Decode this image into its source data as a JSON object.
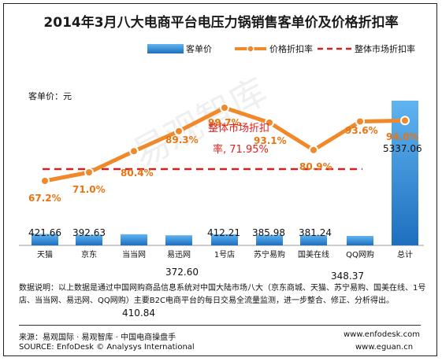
{
  "chart_data": {
    "type": "bar+line",
    "title": "2014年3月八大电商平台电压力锅销售客单价及价格折扣率",
    "ylabel": "客单价：元",
    "categories": [
      "天猫",
      "京东",
      "当当网",
      "易迅网",
      "1号店",
      "苏宁易购",
      "国美在线",
      "QQ网购",
      "总计"
    ],
    "series": [
      {
        "name": "客单价",
        "type": "bar",
        "values": [
          421.66,
          392.63,
          410.84,
          372.6,
          412.21,
          385.98,
          381.24,
          348.37,
          5337.06
        ],
        "labels": [
          "421.66",
          "392.63",
          "410.84",
          "372.60",
          "412.21",
          "385.98",
          "381.24",
          "348.37",
          "5337.06"
        ]
      },
      {
        "name": "价格折扣率",
        "type": "line",
        "values": [
          67.2,
          71.0,
          80.4,
          89.3,
          99.7,
          93.1,
          80.9,
          93.6,
          94.0
        ],
        "labels": [
          "67.2%",
          "71.0%",
          "80.4%",
          "89.3%",
          "99.7%",
          "93.1%",
          "80.9%",
          "93.6%",
          "94.0%"
        ]
      },
      {
        "name": "整体市场折扣率",
        "type": "reference-line",
        "value": 71.95
      }
    ],
    "annotation_line1": "整体市场折扣",
    "annotation_line2": "率, 71.95%",
    "legend_position": "top-right",
    "grid": false
  },
  "watermark": "易观智库",
  "notes": "数据说明：以上数据是通过中国网购商品信息系统对中国大陆市场八大（京东商城、天猫、苏宁易购、国美在线、1号店、当当网、易迅网、QQ网购）主要B2C电商平台的每日交易全流量监测，进一步整合、修正、分析得出。",
  "source_cn": "来源：易观国际 · 易观智库 · 中国电商操盘手",
  "source_en": "SOURCE: EnfoDesk © Analysys International",
  "url1": "www.enfodesk.com",
  "url2": "www.eguan.cn",
  "colors": {
    "bar": "#2f8fd8",
    "line": "#f0892a",
    "reference": "#d42020"
  }
}
